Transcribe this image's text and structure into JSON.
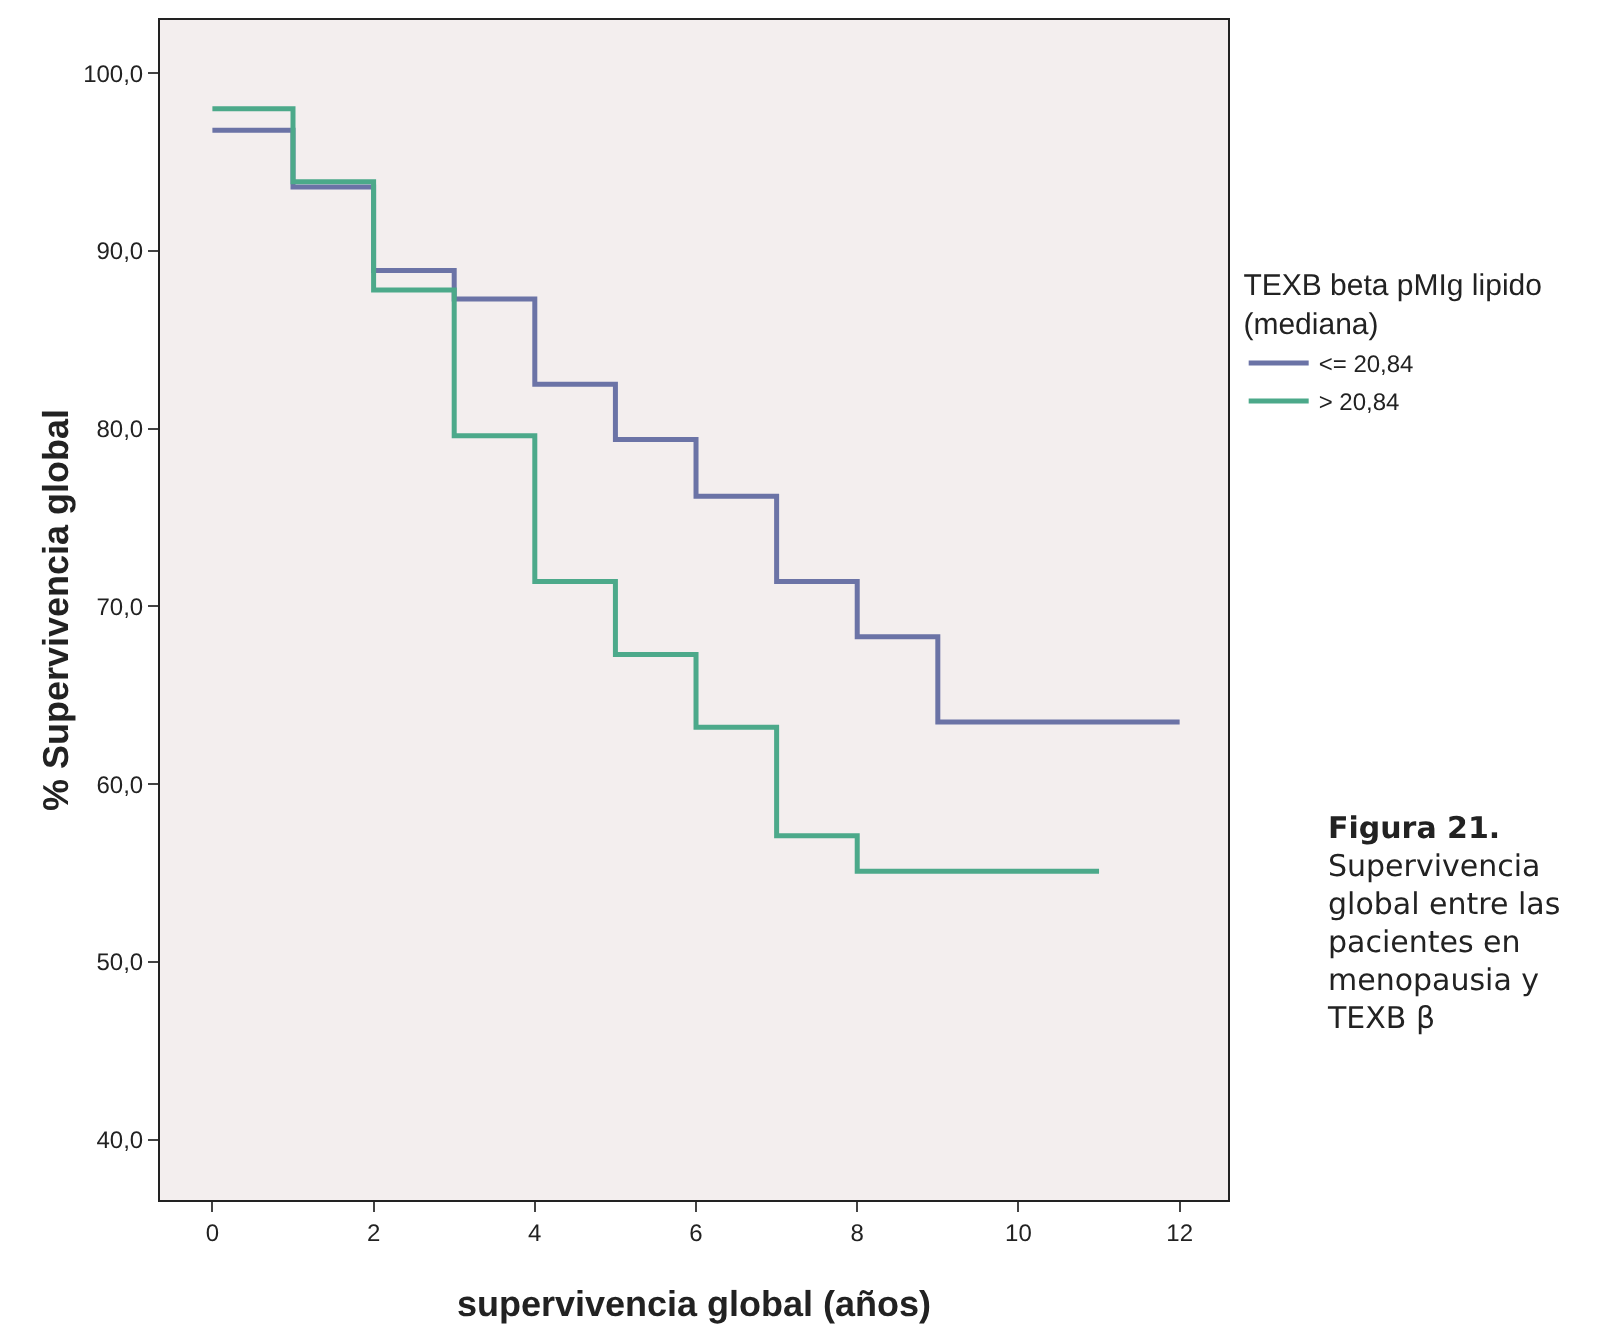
{
  "chart_data": {
    "type": "step",
    "xlabel": "supervivencia global (años)",
    "ylabel": "% Supervivencia global",
    "legend_title": "TEXB beta pMIg lipido (mediana)",
    "legend": "right",
    "series": [
      {
        "name": "<= 20,84",
        "color": "#6b73a6",
        "x": [
          0,
          1,
          2,
          3,
          4,
          5,
          6,
          7,
          8,
          9,
          12
        ],
        "values": [
          96.8,
          93.6,
          88.9,
          87.3,
          82.5,
          79.4,
          76.2,
          71.4,
          68.3,
          63.5,
          63.5
        ]
      },
      {
        "name": "> 20,84",
        "color": "#4ca98a",
        "x": [
          0,
          1,
          2,
          3,
          4,
          5,
          6,
          7,
          8,
          11
        ],
        "values": [
          98.0,
          93.9,
          87.8,
          79.6,
          71.4,
          67.3,
          63.2,
          57.1,
          55.1,
          55.1
        ]
      }
    ],
    "xlim": [
      -0.65,
      12.6
    ],
    "xticks": [
      0,
      2,
      4,
      6,
      8,
      10,
      12
    ],
    "ylim": [
      36.6,
      103
    ],
    "yticks": [
      {
        "value": 40,
        "label": "40,0"
      },
      {
        "value": 50,
        "label": "50,0"
      },
      {
        "value": 60,
        "label": "60,0"
      },
      {
        "value": 70,
        "label": "70,0"
      },
      {
        "value": 80,
        "label": "80,0"
      },
      {
        "value": 90,
        "label": "90,0"
      },
      {
        "value": 100,
        "label": "100,0"
      }
    ],
    "grid": false,
    "annotations": [
      "Figura 21.",
      "Supervivencia global entre las pacientes en menopausia y TEXB β"
    ]
  }
}
